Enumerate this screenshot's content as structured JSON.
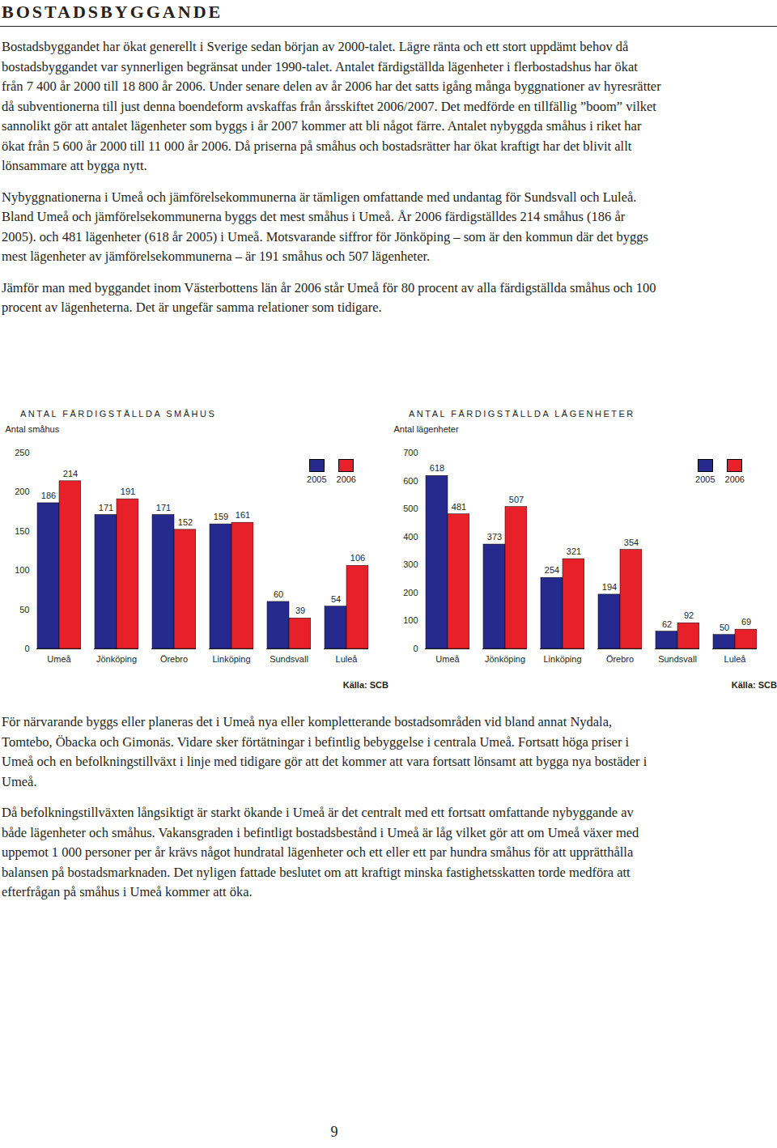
{
  "heading": "BOSTADSBYGGANDE",
  "paragraphs_top": [
    "Bostadsbyggandet har ökat generellt i Sverige sedan början av 2000-talet. Lägre ränta och ett stort uppdämt behov då bostadsbyggandet var synnerligen begränsat under 1990-talet. Antalet färdigställda lägenheter i flerbostadshus har ökat från 7 400 år 2000 till 18 800 år 2006. Under senare delen av år 2006 har det satts igång många byggnationer av hyresrätter då subventionerna till just denna boendeform avskaffas från årsskiftet 2006/2007. Det medförde en tillfällig ”boom” vilket sannolikt gör att antalet lägenheter som byggs i år 2007 kommer att bli något färre. Antalet nybyggda småhus i riket har ökat från 5 600 år 2000 till 11 000 år 2006. Då priserna på småhus och bostadsrätter har ökat kraftigt har det blivit allt lönsammare att bygga nytt.",
    "Nybyggnationerna i Umeå och jämförelsekommunerna är tämligen omfattande med undantag för Sundsvall och Luleå. Bland Umeå och jämförelsekommunerna byggs det mest småhus i Umeå. År 2006 färdigställdes 214 småhus (186 år 2005). och 481 lägenheter (618 år 2005) i Umeå. Motsvarande siffror för Jönköping – som är den kommun där det byggs mest lägenheter av jämförelsekommunerna – är 191 småhus och 507 lägenheter.",
    "Jämför man med byggandet inom Västerbottens län år 2006 står Umeå för 80 procent av alla färdigställda småhus och 100 procent av lägenheterna. Det är ungefär samma relationer som tidigare."
  ],
  "chart_data": [
    {
      "type": "bar",
      "title": "ANTAL FÄRDIGSTÄLLDA SMÅHUS",
      "y_label": "Antal småhus",
      "source": "Källa: SCB",
      "categories": [
        "Umeå",
        "Jönköping",
        "Örebro",
        "Linköping",
        "Sundsvall",
        "Luleå"
      ],
      "series": [
        {
          "name": "2005",
          "color": "#262a8e",
          "values": [
            186,
            171,
            171,
            159,
            60,
            54
          ]
        },
        {
          "name": "2006",
          "color": "#e8202a",
          "values": [
            214,
            191,
            152,
            161,
            39,
            106
          ]
        }
      ],
      "ylim": [
        0,
        250
      ],
      "yticks": [
        0,
        50,
        100,
        150,
        200,
        250
      ],
      "grid": false,
      "legend": "top-right",
      "data_labels": true
    },
    {
      "type": "bar",
      "title": "ANTAL FÄRDIGSTÄLLDA LÄGENHETER",
      "y_label": "Antal lägenheter",
      "source": "Källa: SCB",
      "categories": [
        "Umeå",
        "Jönköping",
        "Linköping",
        "Örebro",
        "Sundsvall",
        "Luleå"
      ],
      "series": [
        {
          "name": "2005",
          "color": "#262a8e",
          "values": [
            618,
            373,
            254,
            194,
            62,
            50
          ]
        },
        {
          "name": "2006",
          "color": "#e8202a",
          "values": [
            481,
            507,
            321,
            354,
            92,
            69
          ]
        }
      ],
      "ylim": [
        0,
        700
      ],
      "yticks": [
        0,
        100,
        200,
        300,
        400,
        500,
        600,
        700
      ],
      "grid": false,
      "legend": "top-right",
      "data_labels": true
    }
  ],
  "paragraphs_bottom": [
    "För närvarande byggs eller planeras det i Umeå nya eller kompletterande bostadsområden vid bland annat Nydala, Tomtebo, Öbacka och Gimonäs. Vidare sker förtätningar i befintlig bebyggelse i centrala Umeå. Fortsatt höga priser i Umeå och en befolkningstillväxt i linje med tidigare gör att det kommer att vara fortsatt lönsamt att bygga nya bostäder i Umeå.",
    "Då befolkningstillväxten långsiktigt är starkt ökande i Umeå är det centralt med ett fortsatt omfattande nybyggande av både lägenheter och småhus. Vakansgraden i befintligt bostadsbestånd i Umeå är låg vilket gör att om Umeå växer med uppemot 1 000 personer per år krävs något hundratal lägenheter och ett eller ett par hundra småhus för att upprätthålla balansen på bostadsmarknaden. Det nyligen fattade beslutet om att kraftigt minska fastighetsskatten torde medföra att efterfrågan på småhus i Umeå kommer att öka."
  ],
  "page_number": "9"
}
